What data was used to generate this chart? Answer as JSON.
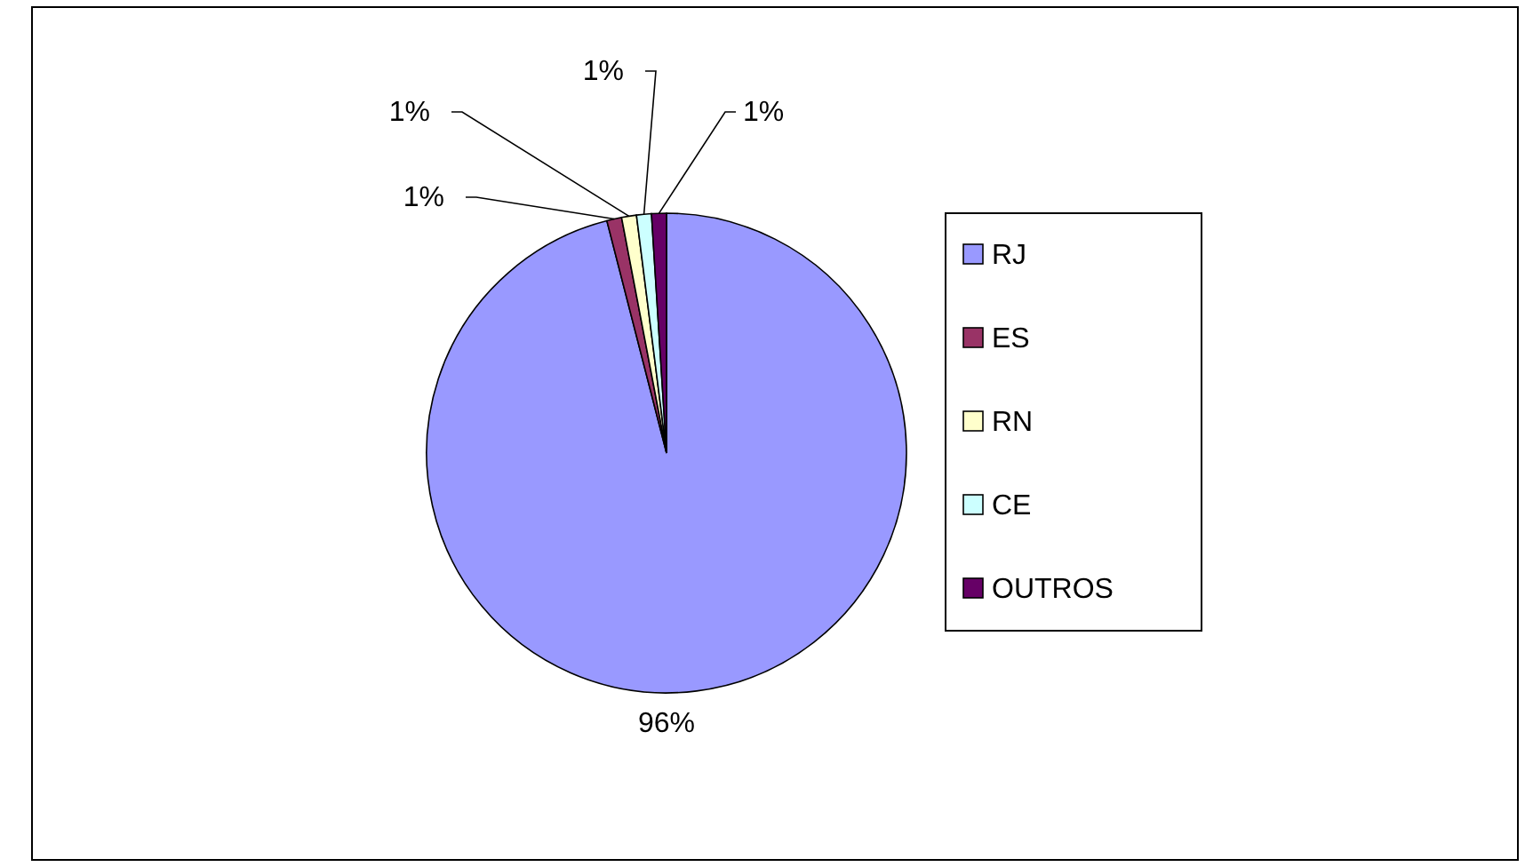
{
  "chart_data": {
    "type": "pie",
    "categories": [
      "RJ",
      "ES",
      "RN",
      "CE",
      "OUTROS"
    ],
    "values": [
      96,
      1,
      1,
      1,
      1
    ],
    "value_labels": [
      "96%",
      "1%",
      "1%",
      "1%",
      "1%"
    ],
    "colors": [
      "#9999ff",
      "#993366",
      "#ffffcc",
      "#ccffff",
      "#660066"
    ],
    "legend": "right"
  }
}
